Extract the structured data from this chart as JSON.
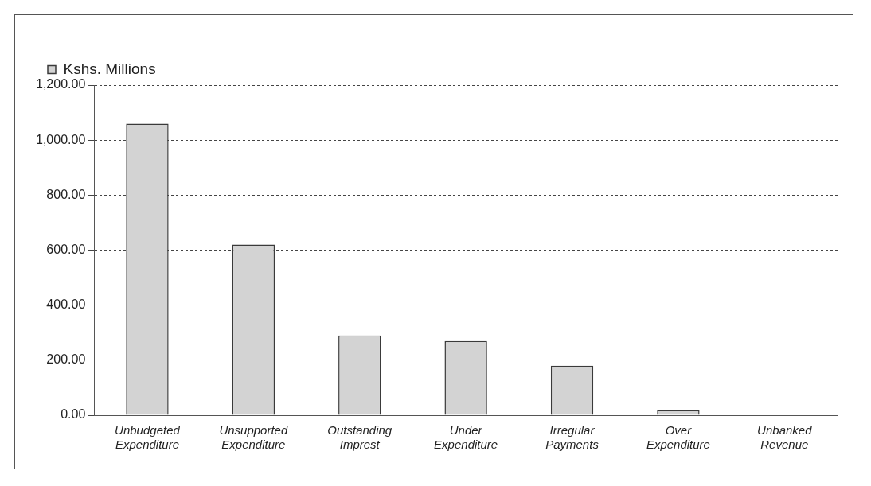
{
  "chart_data": {
    "type": "bar",
    "categories": [
      "Unbudgeted Expenditure",
      "Unsupported Expenditure",
      "Outstanding Imprest",
      "Under Expenditure",
      "Irregular Payments",
      "Over Expenditure",
      "Unbanked Revenue"
    ],
    "series": [
      {
        "name": "Kshs. Millions",
        "color": "#d3d3d3",
        "values": [
          1060,
          620,
          290,
          270,
          180,
          18,
          0
        ]
      }
    ],
    "ylim": [
      0,
      1200
    ],
    "yticks": [
      {
        "value": 0,
        "label": "0.00"
      },
      {
        "value": 200,
        "label": "200.00"
      },
      {
        "value": 400,
        "label": "400.00"
      },
      {
        "value": 600,
        "label": "600.00"
      },
      {
        "value": 800,
        "label": "800.00"
      },
      {
        "value": 1000,
        "label": "1,000.00"
      },
      {
        "value": 1200,
        "label": "1,200.00"
      }
    ],
    "grid": "y",
    "legend": "top left"
  }
}
